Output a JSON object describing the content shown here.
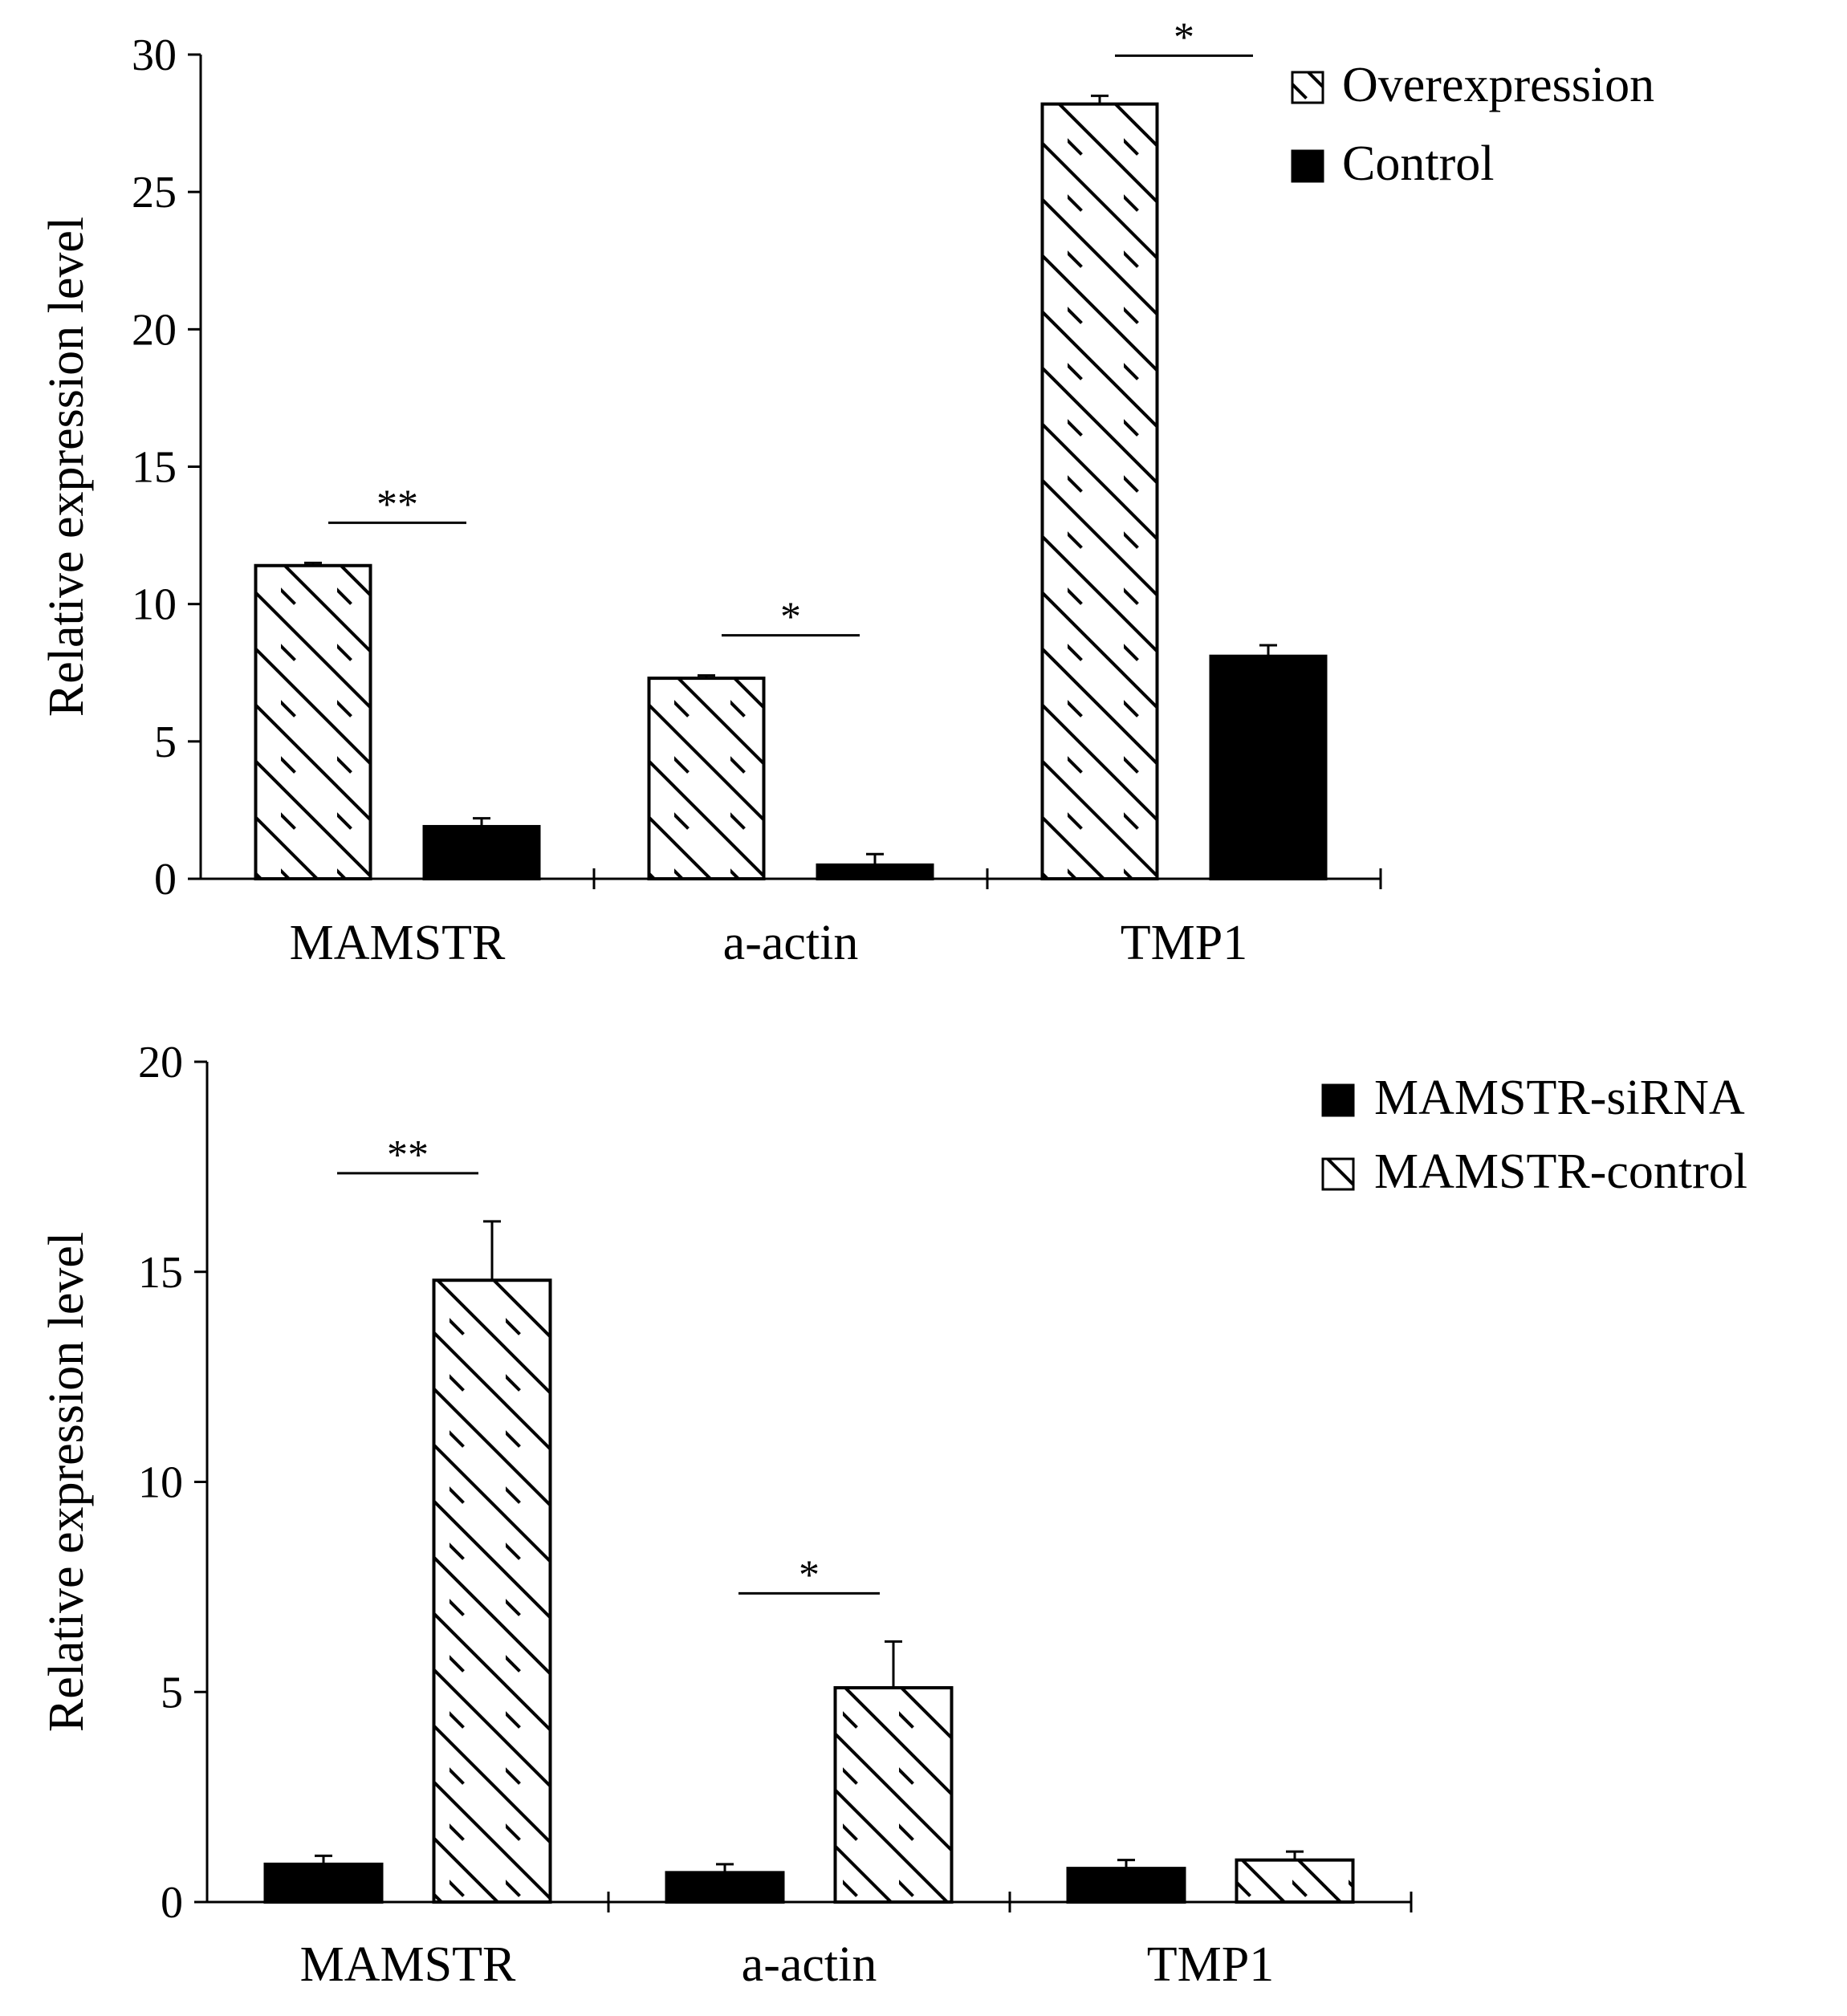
{
  "chart_data": [
    {
      "type": "bar",
      "title": "",
      "xlabel": "",
      "ylabel": "Relative expression level",
      "ylim": [
        0,
        30
      ],
      "yticks": [
        0,
        5,
        10,
        15,
        20,
        25,
        30
      ],
      "categories": [
        "MAMSTR",
        "a-actin",
        "TMP1"
      ],
      "series": [
        {
          "name": "Overexpression",
          "fill": "hatch",
          "values": [
            11.4,
            7.3,
            28.2
          ],
          "errors": [
            0.1,
            0.1,
            0.3
          ]
        },
        {
          "name": "Control",
          "fill": "solid",
          "values": [
            1.9,
            0.5,
            8.1
          ],
          "errors": [
            0.3,
            0.4,
            0.4
          ]
        }
      ],
      "significance": [
        "**",
        "*",
        "*"
      ],
      "legend_position": "top-right",
      "colors": {
        "solid": "#000000",
        "outline": "#000000",
        "background": "#ffffff"
      }
    },
    {
      "type": "bar",
      "title": "",
      "xlabel": "",
      "ylabel": "Relative expression level",
      "ylim": [
        0,
        20
      ],
      "yticks": [
        0,
        5,
        10,
        15,
        20
      ],
      "categories": [
        "MAMSTR",
        "a-actin",
        "TMP1"
      ],
      "series": [
        {
          "name": "MAMSTR-siRNA",
          "fill": "solid",
          "values": [
            0.9,
            0.7,
            0.8
          ],
          "errors": [
            0.2,
            0.2,
            0.2
          ]
        },
        {
          "name": "MAMSTR-control",
          "fill": "hatch",
          "values": [
            14.8,
            5.1,
            1.0
          ],
          "errors": [
            1.4,
            1.1,
            0.2
          ]
        }
      ],
      "significance": [
        "**",
        "*",
        ""
      ],
      "legend_position": "top-right",
      "colors": {
        "solid": "#000000",
        "outline": "#000000",
        "background": "#ffffff"
      }
    }
  ]
}
